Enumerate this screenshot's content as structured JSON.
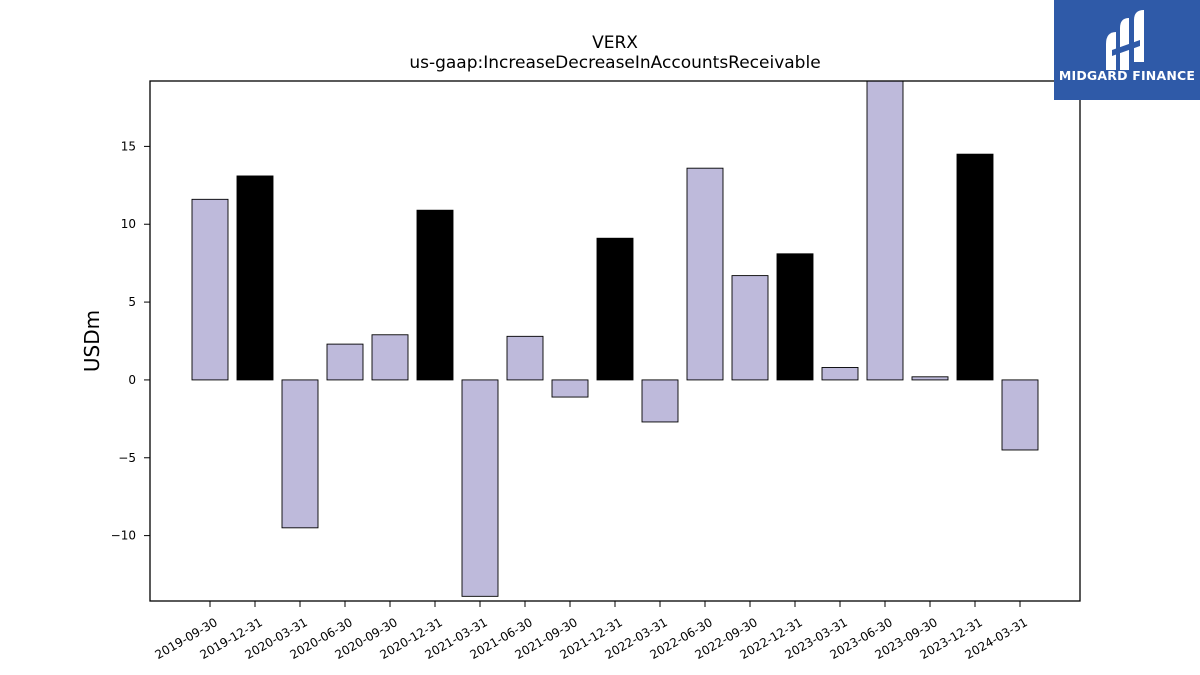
{
  "brand": {
    "name": "MIDGARD FINANCE",
    "color": "#2f5aa8"
  },
  "chart_data": {
    "type": "bar",
    "title": "VERX",
    "subtitle": "us-gaap:IncreaseDecreaseInAccountsReceivable",
    "ylabel": "USDm",
    "xlabel": "",
    "ylim": [
      -14.2,
      19.2
    ],
    "yticks": [
      -10,
      -5,
      0,
      5,
      10,
      15
    ],
    "grid": false,
    "categories": [
      "2019-09-30",
      "2019-12-31",
      "2020-03-31",
      "2020-06-30",
      "2020-09-30",
      "2020-12-31",
      "2021-03-31",
      "2021-06-30",
      "2021-09-30",
      "2021-12-31",
      "2022-03-31",
      "2022-06-30",
      "2022-09-30",
      "2022-12-31",
      "2023-03-31",
      "2023-06-30",
      "2023-09-30",
      "2023-12-31",
      "2024-03-31"
    ],
    "values": [
      11.6,
      13.1,
      -9.5,
      2.3,
      2.9,
      10.9,
      -13.9,
      2.8,
      -1.1,
      9.1,
      -2.7,
      13.6,
      6.7,
      8.1,
      0.8,
      19.2,
      0.2,
      14.5,
      -4.5
    ],
    "colors": {
      "quarter": "#bebadb",
      "year_end": "#000000",
      "edge": "#000000"
    },
    "highlight_categories": [
      "2019-12-31",
      "2020-12-31",
      "2021-12-31",
      "2022-12-31",
      "2023-12-31"
    ]
  }
}
